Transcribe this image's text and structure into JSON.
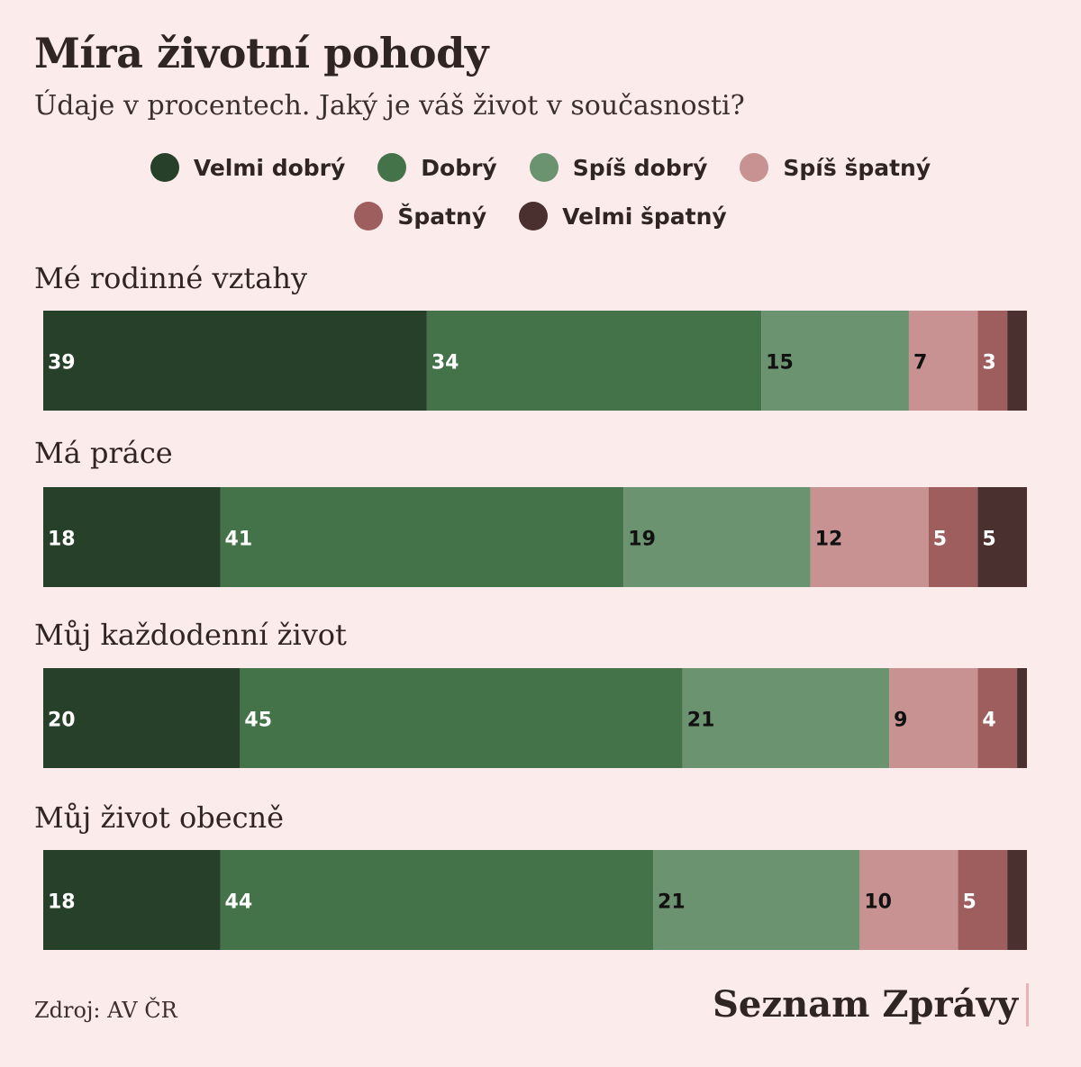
{
  "title": "Míra životní pohody",
  "subtitle": "Údaje v procentech. Jaký je váš život v současnosti?",
  "source": "Zdroj: AV ČR",
  "brand": "Seznam Zprávy",
  "chart_data": {
    "type": "bar",
    "orientation": "horizontal",
    "stacked": true,
    "grid": false,
    "legend_position": "top",
    "categories": [
      "Mé rodinné vztahy",
      "Má práce",
      "Můj každodenní život",
      "Můj  život obecně"
    ],
    "series": [
      {
        "name": "Velmi dobrý",
        "color": "#27402a",
        "label_color": "#ffffff",
        "values": [
          39,
          18,
          20,
          18
        ]
      },
      {
        "name": "Dobrý",
        "color": "#44734a",
        "label_color": "#ffffff",
        "values": [
          34,
          41,
          45,
          44
        ]
      },
      {
        "name": "Spíš dobrý",
        "color": "#6c9370",
        "label_color": "#111111",
        "values": [
          15,
          19,
          21,
          21
        ]
      },
      {
        "name": "Spíš špatný",
        "color": "#c79291",
        "label_color": "#111111",
        "values": [
          7,
          12,
          9,
          10
        ]
      },
      {
        "name": "Špatný",
        "color": "#9e5e5e",
        "label_color": "#ffffff",
        "values": [
          3,
          5,
          4,
          5
        ]
      },
      {
        "name": "Velmi špatný",
        "color": "#4a302e",
        "label_color": "#ffffff",
        "values": [
          2,
          5,
          1,
          2
        ]
      }
    ],
    "labels_shown": [
      [
        true,
        true,
        true,
        true,
        true,
        false
      ],
      [
        true,
        true,
        true,
        true,
        true,
        true
      ],
      [
        true,
        true,
        true,
        true,
        true,
        false
      ],
      [
        true,
        true,
        true,
        true,
        true,
        false
      ]
    ]
  }
}
